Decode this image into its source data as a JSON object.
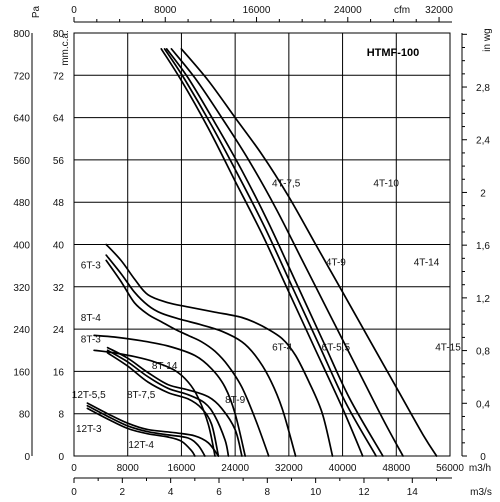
{
  "chart_data": {
    "type": "line",
    "title": "HTMF-100",
    "x_axis": {
      "label": "m3/h",
      "ticks": [
        "0",
        "8000",
        "16000",
        "24000",
        "32000",
        "40000",
        "48000",
        "56000"
      ],
      "range": [
        0,
        56000
      ]
    },
    "x_axis_top": {
      "label": "cfm",
      "ticks": [
        "0",
        "8000",
        "16000",
        "24000",
        "32000"
      ],
      "range": [
        0,
        32960
      ]
    },
    "x_axis_bottom": {
      "label": "m3/s",
      "ticks": [
        "0",
        "2",
        "4",
        "6",
        "8",
        "10",
        "12",
        "14"
      ],
      "range": [
        0,
        15.56
      ]
    },
    "y_axis_left_pa": {
      "label": "Pa",
      "ticks": [
        "0",
        "80",
        "160",
        "240",
        "320",
        "400",
        "480",
        "560",
        "640",
        "720",
        "800"
      ],
      "range": [
        0,
        800
      ]
    },
    "y_axis_left_mm": {
      "label": "mm.c.a.",
      "ticks": [
        "0",
        "8",
        "16",
        "24",
        "32",
        "40",
        "48",
        "56",
        "64",
        "72",
        "80"
      ],
      "range": [
        0,
        80
      ]
    },
    "y_axis_right": {
      "label": "in wg",
      "ticks": [
        "0",
        "0,4",
        "0,8",
        "1,2",
        "1,6",
        "2",
        "2,4",
        "2,8"
      ],
      "range": [
        0,
        3.21
      ]
    },
    "grid": true,
    "series": [
      {
        "name": "4T-7.5",
        "points": [
          [
            13000,
            770
          ],
          [
            16000,
            710
          ],
          [
            20000,
            620
          ],
          [
            24000,
            520
          ],
          [
            28000,
            420
          ],
          [
            32000,
            310
          ],
          [
            36000,
            200
          ],
          [
            40000,
            90
          ],
          [
            43000,
            0
          ]
        ]
      },
      {
        "name": "4T-9",
        "points": [
          [
            13500,
            770
          ],
          [
            16500,
            712
          ],
          [
            20500,
            625
          ],
          [
            24500,
            530
          ],
          [
            28500,
            430
          ],
          [
            32500,
            320
          ],
          [
            36500,
            210
          ],
          [
            40500,
            100
          ],
          [
            45000,
            0
          ]
        ]
      },
      {
        "name": "4T-10",
        "points": [
          [
            13800,
            770
          ],
          [
            17000,
            715
          ],
          [
            21000,
            630
          ],
          [
            25000,
            540
          ],
          [
            29000,
            440
          ],
          [
            33000,
            330
          ],
          [
            37000,
            220
          ],
          [
            41000,
            110
          ],
          [
            46000,
            0
          ]
        ]
      },
      {
        "name": "4T-14",
        "points": [
          [
            14500,
            770
          ],
          [
            18000,
            715
          ],
          [
            22000,
            640
          ],
          [
            26000,
            560
          ],
          [
            30000,
            470
          ],
          [
            34000,
            370
          ],
          [
            38000,
            270
          ],
          [
            42000,
            170
          ],
          [
            46000,
            70
          ],
          [
            49000,
            0
          ]
        ]
      },
      {
        "name": "4T-15",
        "points": [
          [
            16000,
            770
          ],
          [
            20000,
            710
          ],
          [
            24000,
            640
          ],
          [
            28000,
            570
          ],
          [
            32000,
            490
          ],
          [
            36000,
            400
          ],
          [
            40000,
            310
          ],
          [
            44000,
            220
          ],
          [
            48000,
            130
          ],
          [
            52000,
            40
          ],
          [
            54000,
            0
          ]
        ]
      },
      {
        "name": "6T-3",
        "points": [
          [
            4800,
            370
          ],
          [
            7000,
            330
          ],
          [
            9000,
            290
          ],
          [
            11000,
            268
          ],
          [
            13000,
            254
          ],
          [
            15000,
            240
          ],
          [
            17000,
            228
          ],
          [
            19000,
            216
          ],
          [
            21000,
            198
          ],
          [
            23000,
            170
          ],
          [
            25000,
            130
          ],
          [
            27000,
            70
          ],
          [
            29000,
            0
          ]
        ]
      },
      {
        "name": "6T-4",
        "points": [
          [
            4800,
            380
          ],
          [
            7000,
            345
          ],
          [
            9000,
            310
          ],
          [
            11000,
            285
          ],
          [
            13000,
            270
          ],
          [
            16000,
            258
          ],
          [
            19000,
            248
          ],
          [
            22000,
            236
          ],
          [
            25000,
            216
          ],
          [
            27000,
            190
          ],
          [
            29000,
            150
          ],
          [
            31000,
            90
          ],
          [
            33000,
            0
          ]
        ]
      },
      {
        "name": "6T-5.5",
        "points": [
          [
            4800,
            400
          ],
          [
            7000,
            370
          ],
          [
            9000,
            335
          ],
          [
            11000,
            305
          ],
          [
            14000,
            290
          ],
          [
            17000,
            282
          ],
          [
            21000,
            272
          ],
          [
            25000,
            262
          ],
          [
            28000,
            246
          ],
          [
            31000,
            222
          ],
          [
            33000,
            190
          ],
          [
            35000,
            140
          ],
          [
            37000,
            80
          ],
          [
            38500,
            0
          ]
        ]
      },
      {
        "name": "8T-3",
        "points": [
          [
            3000,
            200
          ],
          [
            6000,
            195
          ],
          [
            9000,
            188
          ],
          [
            12000,
            178
          ],
          [
            15000,
            162
          ],
          [
            17000,
            140
          ],
          [
            18500,
            110
          ],
          [
            20000,
            60
          ],
          [
            21000,
            0
          ]
        ]
      },
      {
        "name": "8T-4",
        "points": [
          [
            3000,
            228
          ],
          [
            6000,
            225
          ],
          [
            10000,
            218
          ],
          [
            14000,
            208
          ],
          [
            18000,
            190
          ],
          [
            20500,
            165
          ],
          [
            22500,
            130
          ],
          [
            24000,
            80
          ],
          [
            25500,
            0
          ]
        ]
      },
      {
        "name": "8T-7,5",
        "points": [
          [
            5000,
            195
          ],
          [
            8000,
            170
          ],
          [
            11000,
            140
          ],
          [
            14000,
            120
          ],
          [
            17000,
            108
          ],
          [
            19000,
            90
          ],
          [
            20500,
            60
          ],
          [
            21500,
            0
          ]
        ]
      },
      {
        "name": "8T-9",
        "points": [
          [
            5000,
            200
          ],
          [
            8000,
            178
          ],
          [
            11000,
            150
          ],
          [
            14000,
            128
          ],
          [
            17000,
            116
          ],
          [
            19500,
            100
          ],
          [
            21000,
            75
          ],
          [
            22500,
            30
          ],
          [
            23000,
            0
          ]
        ]
      },
      {
        "name": "8T-14",
        "points": [
          [
            5000,
            205
          ],
          [
            8000,
            185
          ],
          [
            11000,
            158
          ],
          [
            14000,
            135
          ],
          [
            17000,
            125
          ],
          [
            20000,
            112
          ],
          [
            22000,
            90
          ],
          [
            24000,
            50
          ],
          [
            25000,
            0
          ]
        ]
      },
      {
        "name": "12T-3",
        "points": [
          [
            2000,
            90
          ],
          [
            5000,
            70
          ],
          [
            8000,
            52
          ],
          [
            11000,
            42
          ],
          [
            14000,
            36
          ],
          [
            16000,
            28
          ],
          [
            17500,
            10
          ],
          [
            18000,
            0
          ]
        ]
      },
      {
        "name": "12T-4",
        "points": [
          [
            2000,
            95
          ],
          [
            5000,
            75
          ],
          [
            8000,
            57
          ],
          [
            11000,
            46
          ],
          [
            14000,
            40
          ],
          [
            17000,
            34
          ],
          [
            18500,
            20
          ],
          [
            19500,
            0
          ]
        ]
      },
      {
        "name": "12T-5,5",
        "points": [
          [
            2000,
            100
          ],
          [
            5000,
            80
          ],
          [
            8000,
            62
          ],
          [
            11000,
            50
          ],
          [
            15000,
            44
          ],
          [
            18000,
            38
          ],
          [
            20000,
            25
          ],
          [
            21500,
            0
          ]
        ]
      }
    ]
  },
  "labels": [
    {
      "text": "4T-7,5",
      "x": 31600,
      "y": 510
    },
    {
      "text": "4T-10",
      "x": 46500,
      "y": 510
    },
    {
      "text": "4T-9",
      "x": 39000,
      "y": 360
    },
    {
      "text": "4T-14",
      "x": 52500,
      "y": 360
    },
    {
      "text": "4T-15",
      "x": 59500,
      "y": 200
    },
    {
      "text": "6T-3",
      "x": 2500,
      "y": 355
    },
    {
      "text": "6T-4",
      "x": 31000,
      "y": 200
    },
    {
      "text": "6T-5,5",
      "x": 39000,
      "y": 200
    },
    {
      "text": "8T-4",
      "x": 2500,
      "y": 255
    },
    {
      "text": "8T-3",
      "x": 2500,
      "y": 215
    },
    {
      "text": "8T-14",
      "x": 13500,
      "y": 165
    },
    {
      "text": "8T-7,5",
      "x": 10000,
      "y": 110
    },
    {
      "text": "8T-9",
      "x": 24000,
      "y": 100
    },
    {
      "text": "12T-5,5",
      "x": 2200,
      "y": 110
    },
    {
      "text": "12T-3",
      "x": 2200,
      "y": 45
    },
    {
      "text": "12T-4",
      "x": 10000,
      "y": 15
    }
  ]
}
